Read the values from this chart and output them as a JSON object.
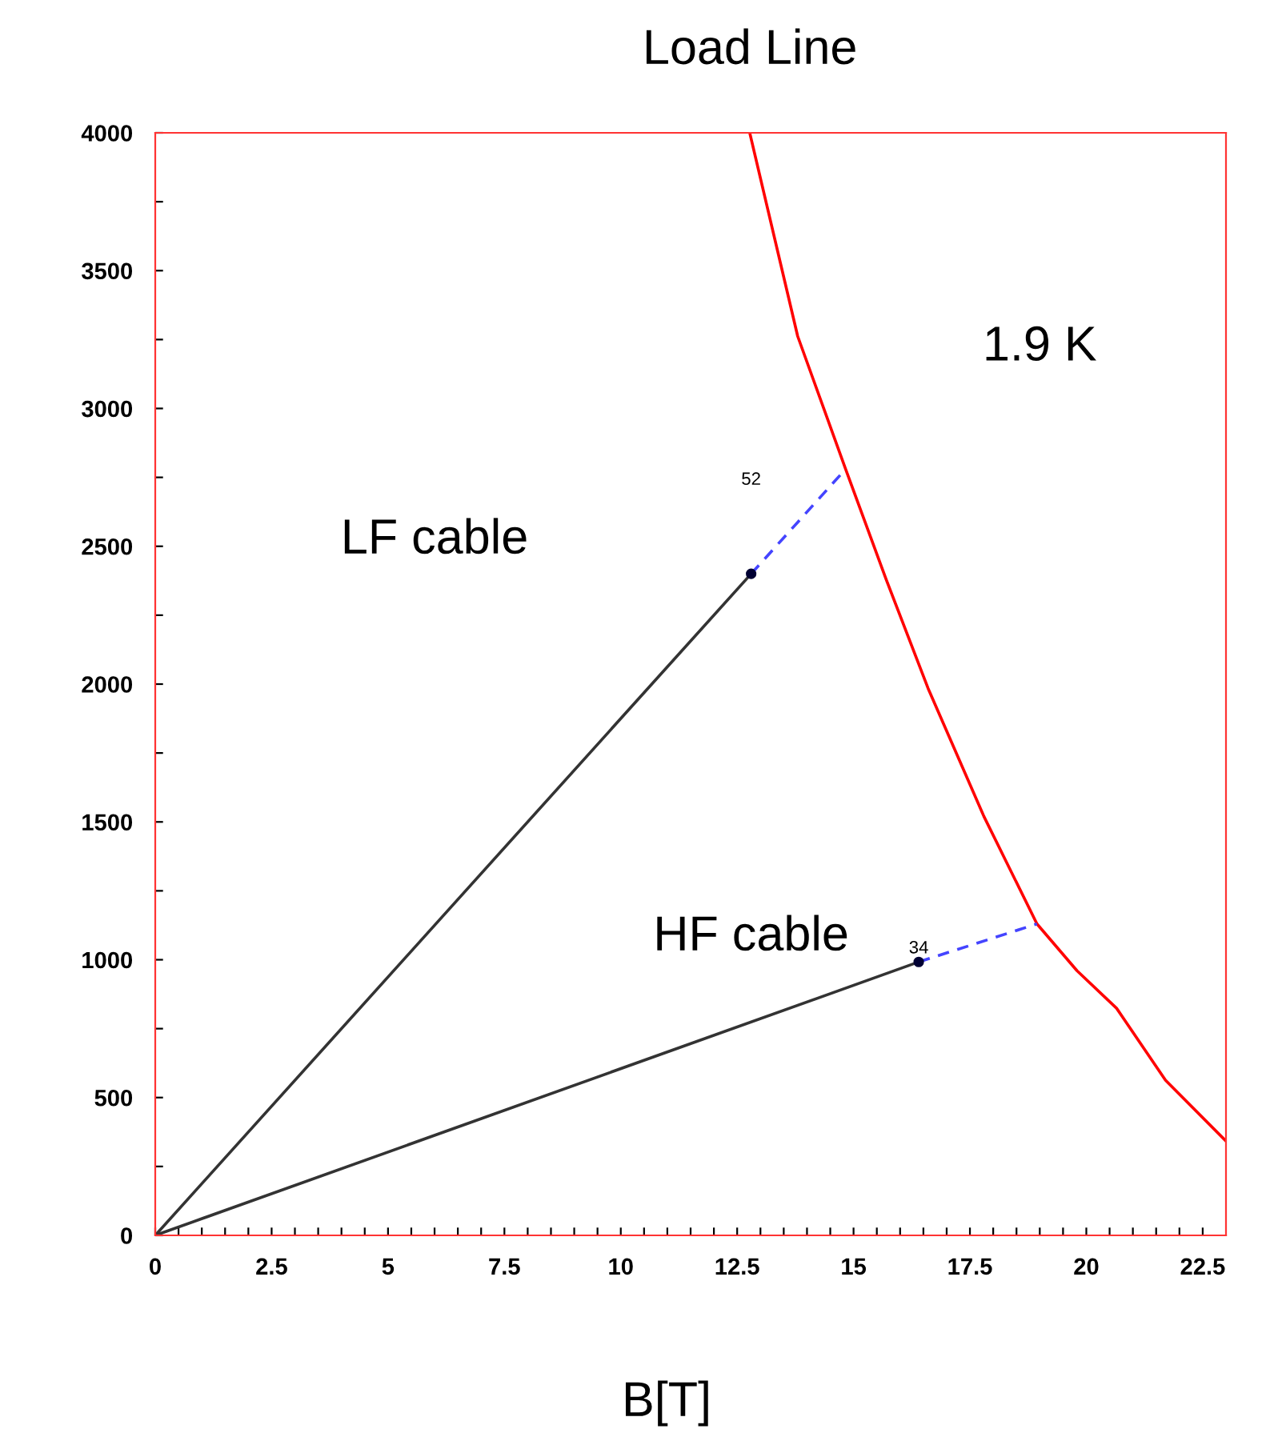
{
  "chart_data": {
    "type": "line",
    "title": "Load Line",
    "xlabel": "B[T]",
    "xlim": [
      0,
      23
    ],
    "ylim": [
      0,
      4000
    ],
    "xticks": [
      0,
      {
        "value": 0.5,
        "label": null
      },
      {
        "value": 1,
        "label": null
      },
      {
        "value": 1.5,
        "label": null
      },
      {
        "value": 2,
        "label": null
      },
      2.5,
      {
        "value": 3,
        "label": null
      },
      {
        "value": 3.5,
        "label": null
      },
      {
        "value": 4,
        "label": null
      },
      {
        "value": 4.5,
        "label": null
      },
      5,
      {
        "value": 5.5,
        "label": null
      },
      {
        "value": 6,
        "label": null
      },
      {
        "value": 6.5,
        "label": null
      },
      {
        "value": 7,
        "label": null
      },
      7.5,
      {
        "value": 8,
        "label": null
      },
      {
        "value": 8.5,
        "label": null
      },
      {
        "value": 9,
        "label": null
      },
      {
        "value": 9.5,
        "label": null
      },
      10,
      {
        "value": 10.5,
        "label": null
      },
      {
        "value": 11,
        "label": null
      },
      {
        "value": 11.5,
        "label": null
      },
      {
        "value": 12,
        "label": null
      },
      12.5,
      {
        "value": 13,
        "label": null
      },
      {
        "value": 13.5,
        "label": null
      },
      {
        "value": 14,
        "label": null
      },
      {
        "value": 14.5,
        "label": null
      },
      15,
      {
        "value": 15.5,
        "label": null
      },
      {
        "value": 16,
        "label": null
      },
      {
        "value": 16.5,
        "label": null
      },
      {
        "value": 17,
        "label": null
      },
      17.5,
      {
        "value": 18,
        "label": null
      },
      {
        "value": 18.5,
        "label": null
      },
      {
        "value": 19,
        "label": null
      },
      {
        "value": 19.5,
        "label": null
      },
      20,
      {
        "value": 20.5,
        "label": null
      },
      {
        "value": 21,
        "label": null
      },
      {
        "value": 21.5,
        "label": null
      },
      {
        "value": 22,
        "label": null
      },
      22.5
    ],
    "yticks": [
      0,
      {
        "value": 250,
        "label": null
      },
      500,
      {
        "value": 750,
        "label": null
      },
      1000,
      {
        "value": 1250,
        "label": null
      },
      1500,
      {
        "value": 1750,
        "label": null
      },
      2000,
      {
        "value": 2250,
        "label": null
      },
      2500,
      {
        "value": 2750,
        "label": null
      },
      3000,
      {
        "value": 3250,
        "label": null
      },
      3500,
      {
        "value": 3750,
        "label": null
      },
      4000
    ],
    "grid": false,
    "legend": false,
    "series": [
      {
        "color": "#ff0000",
        "x": [
          12.77,
          13.8,
          14.83,
          15.7,
          16.6,
          17.8,
          18.94,
          19.8,
          20.65,
          21.7,
          23
        ],
        "values": [
          4000,
          3262,
          2780,
          2380,
          1985,
          1520,
          1130,
          960,
          824,
          563,
          342
        ],
        "marker": "none",
        "line_style": "solid"
      },
      {
        "color": "#333333",
        "x": [
          0,
          12.8
        ],
        "values": [
          0,
          2400
        ],
        "marker": "none",
        "line_style": "solid"
      },
      {
        "color": "#000033",
        "type": "scatter",
        "x": [
          12.8,
          16.4
        ],
        "values": [
          2400,
          992
        ],
        "marker": "circle"
      },
      {
        "color": "#4444ff",
        "x": [
          12.8,
          14.83
        ],
        "values": [
          2400,
          2780
        ],
        "marker": "none",
        "line_style": "dashed"
      },
      {
        "color": "#333333",
        "x": [
          0,
          16.4
        ],
        "values": [
          0,
          992
        ],
        "marker": "none",
        "line_style": "solid"
      },
      {
        "color": "#4444ff",
        "x": [
          16.4,
          18.94
        ],
        "values": [
          992,
          1130
        ],
        "marker": "none",
        "line_style": "dashed"
      }
    ],
    "annotations": [
      "LF cable",
      "HF cable",
      "1.9 K",
      "52",
      "34"
    ]
  }
}
